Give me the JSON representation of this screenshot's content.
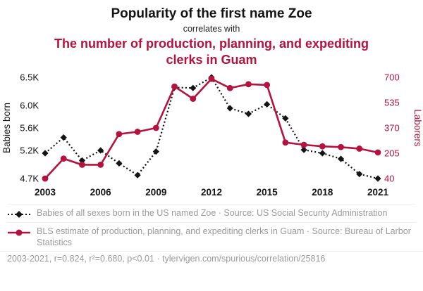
{
  "header": {
    "title": "Popularity of the first name Zoe",
    "connector": "correlates with",
    "subtitle": "The number of production, planning, and expediting clerks in Guam"
  },
  "colors": {
    "accent_red": "#b5123e",
    "series_black": "#141414",
    "muted_gray": "#9a9a9a"
  },
  "chart_data": {
    "type": "line",
    "x": [
      2003,
      2004,
      2005,
      2006,
      2007,
      2008,
      2009,
      2010,
      2011,
      2012,
      2013,
      2014,
      2015,
      2016,
      2017,
      2018,
      2019,
      2020,
      2021
    ],
    "x_ticks": [
      2003,
      2006,
      2009,
      2012,
      2015,
      2018,
      2021
    ],
    "left_axis": {
      "label": "Babies born",
      "range": [
        4700,
        6500
      ],
      "ticks": [
        4700,
        5200,
        5600,
        6000,
        6500
      ],
      "tick_labels": [
        "4.7K",
        "5.2K",
        "5.6K",
        "6.0K",
        "6.5K"
      ]
    },
    "right_axis": {
      "label": "Laborers",
      "range": [
        40,
        700
      ],
      "ticks": [
        40,
        205,
        370,
        535,
        700
      ],
      "tick_labels": [
        "40",
        "205",
        "370",
        "535",
        "700"
      ]
    },
    "series": [
      {
        "name": "Babies of all sexes born in the US named Zoe",
        "axis": "left",
        "color": "#141414",
        "style": "dotted",
        "marker": "diamond",
        "values": [
          5150,
          5430,
          5020,
          5200,
          4970,
          4760,
          5180,
          6320,
          6310,
          6500,
          5950,
          5850,
          6020,
          5770,
          5210,
          5150,
          5050,
          4780,
          4700
        ]
      },
      {
        "name": "BLS estimate of production, planning, and expediting clerks in Guam",
        "axis": "right",
        "color": "#b5123e",
        "style": "solid",
        "marker": "circle",
        "values": [
          40,
          170,
          130,
          130,
          330,
          345,
          370,
          640,
          560,
          690,
          630,
          655,
          650,
          275,
          260,
          250,
          245,
          235,
          210
        ]
      }
    ]
  },
  "legend": [
    {
      "label": "Babies of all sexes born in the US named Zoe · Source: US Social Security Administration"
    },
    {
      "label": "BLS estimate of production, planning, and expediting clerks in Guam · Source: Bureau of Larbor Statistics"
    }
  ],
  "footer": {
    "stats": "2003-2021, r=0.824, r²=0.680, p<0.01",
    "separator": "·",
    "link": "tylervigen.com/spurious/correlation/25816"
  }
}
